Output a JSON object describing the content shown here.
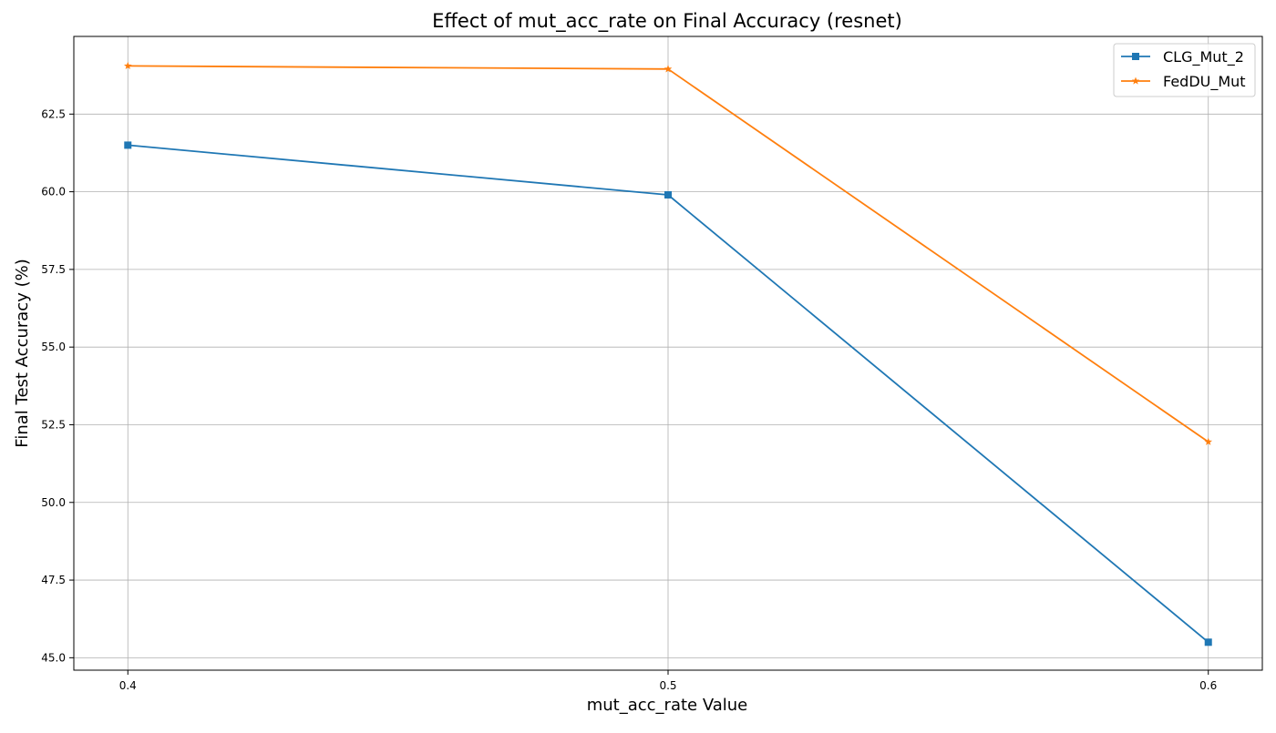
{
  "chart_data": {
    "type": "line",
    "title": "Effect of mut_acc_rate on Final Accuracy (resnet)",
    "xlabel": "mut_acc_rate Value",
    "ylabel": "Final Test Accuracy (%)",
    "x": [
      0.4,
      0.5,
      0.6
    ],
    "x_ticks": [
      "0.4",
      "0.5",
      "0.6"
    ],
    "y_ticks": [
      "45.0",
      "47.5",
      "50.0",
      "52.5",
      "55.0",
      "57.5",
      "60.0",
      "62.5"
    ],
    "y_tick_values": [
      45.0,
      47.5,
      50.0,
      52.5,
      55.0,
      57.5,
      60.0,
      62.5
    ],
    "xlim": [
      0.39,
      0.61
    ],
    "ylim": [
      44.6,
      65.0
    ],
    "grid": true,
    "legend_position": "top-right",
    "series": [
      {
        "name": "CLG_Mut_2",
        "values": [
          61.5,
          59.9,
          45.5
        ],
        "color": "#1f77b4",
        "marker": "square"
      },
      {
        "name": "FedDU_Mut",
        "values": [
          64.05,
          63.95,
          51.95
        ],
        "color": "#ff7f0e",
        "marker": "star"
      }
    ]
  }
}
